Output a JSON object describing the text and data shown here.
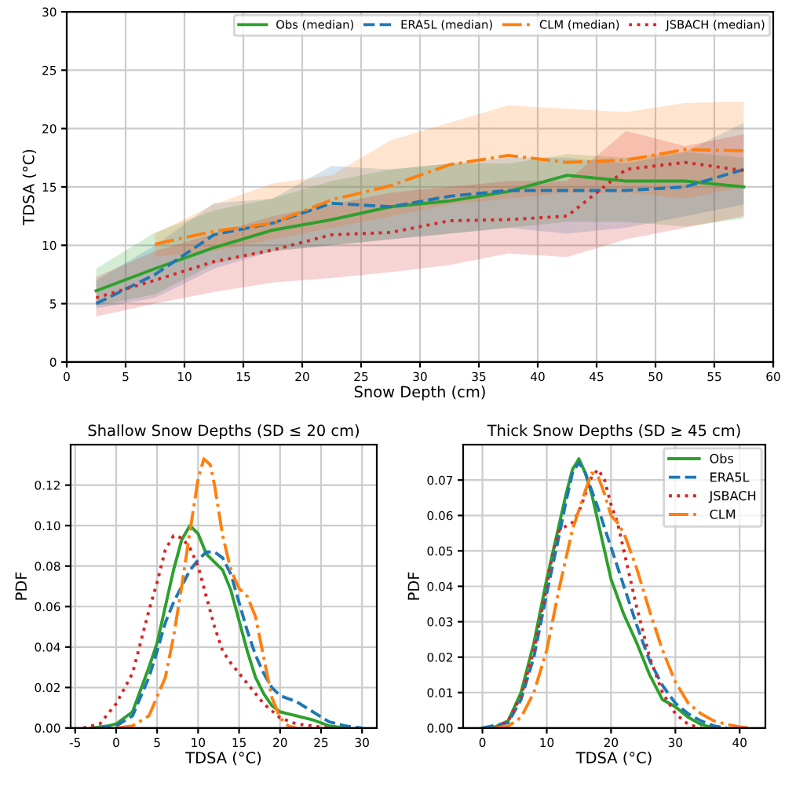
{
  "chart_data": [
    {
      "type": "line",
      "xlabel": "Snow Depth (cm)",
      "ylabel": "TDSA (°C)",
      "xlim": [
        0,
        60
      ],
      "ylim": [
        0,
        30
      ],
      "xticks": [
        0,
        5,
        10,
        15,
        20,
        25,
        30,
        35,
        40,
        45,
        50,
        55,
        60
      ],
      "yticks": [
        0,
        5,
        10,
        15,
        20,
        25,
        30
      ],
      "grid": true,
      "legend": "top right",
      "series": [
        {
          "name": "Obs (median)",
          "color": "#2ca02c",
          "line_style": "solid",
          "x": [
            2.5,
            7.5,
            12.5,
            17.5,
            22.5,
            27.5,
            32.5,
            37.5,
            42.5,
            47.5,
            52.5,
            57.5
          ],
          "values": [
            6.1,
            8.0,
            9.8,
            11.3,
            12.2,
            13.3,
            13.8,
            14.6,
            16.0,
            15.5,
            15.5,
            15.0
          ],
          "lower": [
            4.8,
            5.8,
            8.4,
            9.5,
            10.0,
            10.5,
            11.0,
            11.5,
            12.0,
            12.0,
            11.6,
            12.3
          ],
          "upper": [
            8.0,
            11.1,
            13.0,
            14.0,
            15.5,
            16.5,
            17.0,
            17.0,
            17.8,
            17.5,
            18.0,
            17.5
          ]
        },
        {
          "name": "ERA5L (median)",
          "color": "#1f77b4",
          "line_style": "dashed",
          "x": [
            2.5,
            7.5,
            12.5,
            17.5,
            22.5,
            27.5,
            32.5,
            37.5,
            42.5,
            47.5,
            52.5,
            57.5
          ],
          "values": [
            5.0,
            7.5,
            10.9,
            11.9,
            13.6,
            13.3,
            14.2,
            14.7,
            14.7,
            14.7,
            15.0,
            16.5
          ],
          "lower": [
            4.6,
            5.5,
            8.0,
            9.5,
            10.0,
            10.5,
            11.0,
            11.5,
            11.0,
            11.5,
            12.5,
            13.5
          ],
          "upper": [
            7.0,
            10.0,
            13.6,
            14.0,
            16.8,
            16.5,
            17.0,
            17.5,
            17.5,
            17.0,
            18.0,
            20.5
          ]
        },
        {
          "name": "CLM (median)",
          "color": "#ff7f0e",
          "line_style": "dashdot",
          "x": [
            7.5,
            12.5,
            17.5,
            22.5,
            27.5,
            32.5,
            37.5,
            42.5,
            47.5,
            52.5,
            57.5
          ],
          "values": [
            10.1,
            11.2,
            11.9,
            13.9,
            15.1,
            16.9,
            17.7,
            17.1,
            17.3,
            18.2,
            18.1
          ],
          "lower": [
            9.0,
            9.5,
            10.5,
            11.5,
            12.5,
            13.5,
            14.0,
            14.5,
            14.5,
            14.0,
            15.0
          ],
          "upper": [
            11.0,
            13.5,
            15.3,
            16.0,
            19.0,
            20.5,
            22.0,
            21.7,
            21.4,
            22.2,
            22.3
          ]
        },
        {
          "name": "JSBACH (median)",
          "color": "#d62728",
          "line_style": "dotted",
          "x": [
            2.5,
            7.5,
            12.5,
            17.5,
            22.5,
            27.5,
            32.5,
            37.5,
            42.5,
            47.5,
            52.5,
            57.5
          ],
          "values": [
            5.5,
            7.0,
            8.6,
            9.6,
            10.9,
            11.1,
            12.1,
            12.2,
            12.5,
            16.5,
            17.1,
            16.4
          ],
          "lower": [
            3.9,
            5.0,
            6.0,
            6.8,
            7.2,
            7.7,
            8.3,
            9.3,
            9.0,
            10.5,
            11.5,
            12.5
          ],
          "upper": [
            7.3,
            9.5,
            11.0,
            12.5,
            13.5,
            14.5,
            15.0,
            15.5,
            15.5,
            19.8,
            18.5,
            19.5
          ]
        }
      ]
    },
    {
      "type": "line",
      "title": "Shallow Snow Depths (SD ≤ 20 cm)",
      "xlabel": "TDSA (°C)",
      "ylabel": "PDF",
      "xlim": [
        -5.55,
        31.8
      ],
      "ylim": [
        0,
        0.14
      ],
      "xticks": [
        -5,
        0,
        5,
        10,
        15,
        20,
        25,
        30
      ],
      "yticks": [
        {
          "value": 0,
          "label": "0.00"
        },
        {
          "value": 0.02,
          "label": "0.02"
        },
        {
          "value": 0.04,
          "label": "0.04"
        },
        {
          "value": 0.06,
          "label": "0.06"
        },
        {
          "value": 0.08,
          "label": "0.08"
        },
        {
          "value": 0.1,
          "label": "0.10"
        },
        {
          "value": 0.12,
          "label": "0.12"
        }
      ],
      "grid": true,
      "series": [
        {
          "color": "#2ca02c",
          "line_style": "solid",
          "x": [
            -3,
            -1,
            0,
            2,
            4,
            5,
            6,
            7,
            8,
            9,
            10,
            11,
            12,
            13,
            14,
            15,
            16,
            17,
            18,
            19,
            20,
            21,
            22,
            24,
            26,
            28
          ],
          "values": [
            0,
            0.001,
            0.002,
            0.008,
            0.03,
            0.042,
            0.06,
            0.078,
            0.093,
            0.1,
            0.096,
            0.086,
            0.082,
            0.078,
            0.068,
            0.053,
            0.038,
            0.025,
            0.017,
            0.011,
            0.008,
            0.007,
            0.006,
            0.004,
            0.001,
            0
          ]
        },
        {
          "color": "#1f77b4",
          "line_style": "dashed",
          "x": [
            -2,
            0,
            2,
            4,
            5,
            6,
            7,
            8,
            9,
            10,
            11,
            12,
            13,
            14,
            15,
            16,
            17,
            18,
            19,
            20,
            22,
            24,
            26,
            28,
            30
          ],
          "values": [
            0,
            0.001,
            0.006,
            0.025,
            0.038,
            0.052,
            0.062,
            0.07,
            0.078,
            0.083,
            0.087,
            0.087,
            0.084,
            0.076,
            0.062,
            0.048,
            0.036,
            0.027,
            0.02,
            0.016,
            0.013,
            0.008,
            0.003,
            0.001,
            0
          ]
        },
        {
          "color": "#d62728",
          "line_style": "dotted",
          "x": [
            -4,
            -2,
            0,
            2,
            4,
            5,
            6,
            7,
            8,
            9,
            10,
            11,
            12,
            13,
            14,
            15,
            16,
            18,
            20,
            22,
            24,
            26
          ],
          "values": [
            0,
            0.002,
            0.012,
            0.027,
            0.058,
            0.072,
            0.088,
            0.095,
            0.094,
            0.089,
            0.08,
            0.065,
            0.05,
            0.038,
            0.032,
            0.027,
            0.022,
            0.012,
            0.005,
            0.002,
            0.001,
            0
          ]
        },
        {
          "color": "#ff7f0e",
          "line_style": "dashdot",
          "x": [
            0,
            2,
            4,
            6,
            7,
            8,
            9,
            10,
            10.7,
            11.5,
            12,
            13,
            14,
            15,
            16,
            17,
            18,
            19,
            20,
            21,
            22
          ],
          "values": [
            0,
            0.001,
            0.006,
            0.025,
            0.045,
            0.07,
            0.097,
            0.123,
            0.133,
            0.13,
            0.12,
            0.095,
            0.078,
            0.069,
            0.065,
            0.055,
            0.035,
            0.015,
            0.005,
            0.001,
            0
          ]
        }
      ]
    },
    {
      "type": "line",
      "title": "Thick Snow Depths (SD ≥ 45 cm)",
      "xlabel": "TDSA (°C)",
      "ylabel": "PDF",
      "xlim": [
        -3,
        44
      ],
      "ylim": [
        0,
        0.08
      ],
      "xticks": [
        0,
        10,
        20,
        30,
        40
      ],
      "yticks": [
        {
          "value": 0,
          "label": "0.00"
        },
        {
          "value": 0.01,
          "label": "0.01"
        },
        {
          "value": 0.02,
          "label": "0.02"
        },
        {
          "value": 0.03,
          "label": "0.03"
        },
        {
          "value": 0.04,
          "label": "0.04"
        },
        {
          "value": 0.05,
          "label": "0.05"
        },
        {
          "value": 0.06,
          "label": "0.06"
        },
        {
          "value": 0.07,
          "label": "0.07"
        }
      ],
      "grid": true,
      "legend": "top right",
      "series": [
        {
          "name": "Obs",
          "color": "#2ca02c",
          "line_style": "solid",
          "x": [
            0,
            2,
            4,
            6,
            8,
            10,
            12,
            13,
            14,
            15,
            16,
            17,
            18,
            19,
            20,
            22,
            24,
            26,
            28,
            30,
            32,
            34,
            36
          ],
          "values": [
            0,
            0.0003,
            0.002,
            0.01,
            0.024,
            0.042,
            0.058,
            0.066,
            0.073,
            0.076,
            0.072,
            0.066,
            0.058,
            0.05,
            0.042,
            0.032,
            0.024,
            0.015,
            0.008,
            0.006,
            0.003,
            0.001,
            0
          ]
        },
        {
          "name": "ERA5L",
          "color": "#1f77b4",
          "line_style": "dashed",
          "x": [
            0,
            4,
            6,
            8,
            10,
            12,
            13,
            14,
            15,
            16,
            17,
            18,
            20,
            22,
            24,
            26,
            28,
            30,
            32,
            34,
            36,
            38
          ],
          "values": [
            0,
            0.0015,
            0.008,
            0.02,
            0.038,
            0.055,
            0.064,
            0.072,
            0.075,
            0.072,
            0.067,
            0.062,
            0.051,
            0.04,
            0.029,
            0.019,
            0.012,
            0.007,
            0.004,
            0.002,
            0.0006,
            0
          ]
        },
        {
          "name": "JSBACH",
          "color": "#d62728",
          "line_style": "dotted",
          "x": [
            2,
            4,
            6,
            8,
            10,
            11,
            12,
            13,
            14,
            15,
            16,
            17,
            18,
            19,
            20,
            21,
            22,
            24,
            26,
            28,
            30,
            32,
            34
          ],
          "values": [
            0,
            0.002,
            0.009,
            0.022,
            0.04,
            0.05,
            0.056,
            0.057,
            0.058,
            0.061,
            0.066,
            0.071,
            0.073,
            0.07,
            0.063,
            0.058,
            0.05,
            0.034,
            0.02,
            0.01,
            0.004,
            0.001,
            0
          ]
        },
        {
          "name": "CLM",
          "color": "#ff7f0e",
          "line_style": "dashdot",
          "x": [
            2,
            4,
            6,
            8,
            10,
            12,
            14,
            16,
            17,
            18,
            19,
            20,
            21,
            22,
            24,
            26,
            28,
            30,
            32,
            34,
            36,
            38,
            40,
            42
          ],
          "values": [
            0,
            0.0005,
            0.003,
            0.01,
            0.022,
            0.04,
            0.056,
            0.067,
            0.072,
            0.071,
            0.066,
            0.06,
            0.058,
            0.055,
            0.045,
            0.033,
            0.022,
            0.013,
            0.007,
            0.004,
            0.002,
            0.001,
            0.0003,
            0
          ]
        }
      ]
    }
  ]
}
